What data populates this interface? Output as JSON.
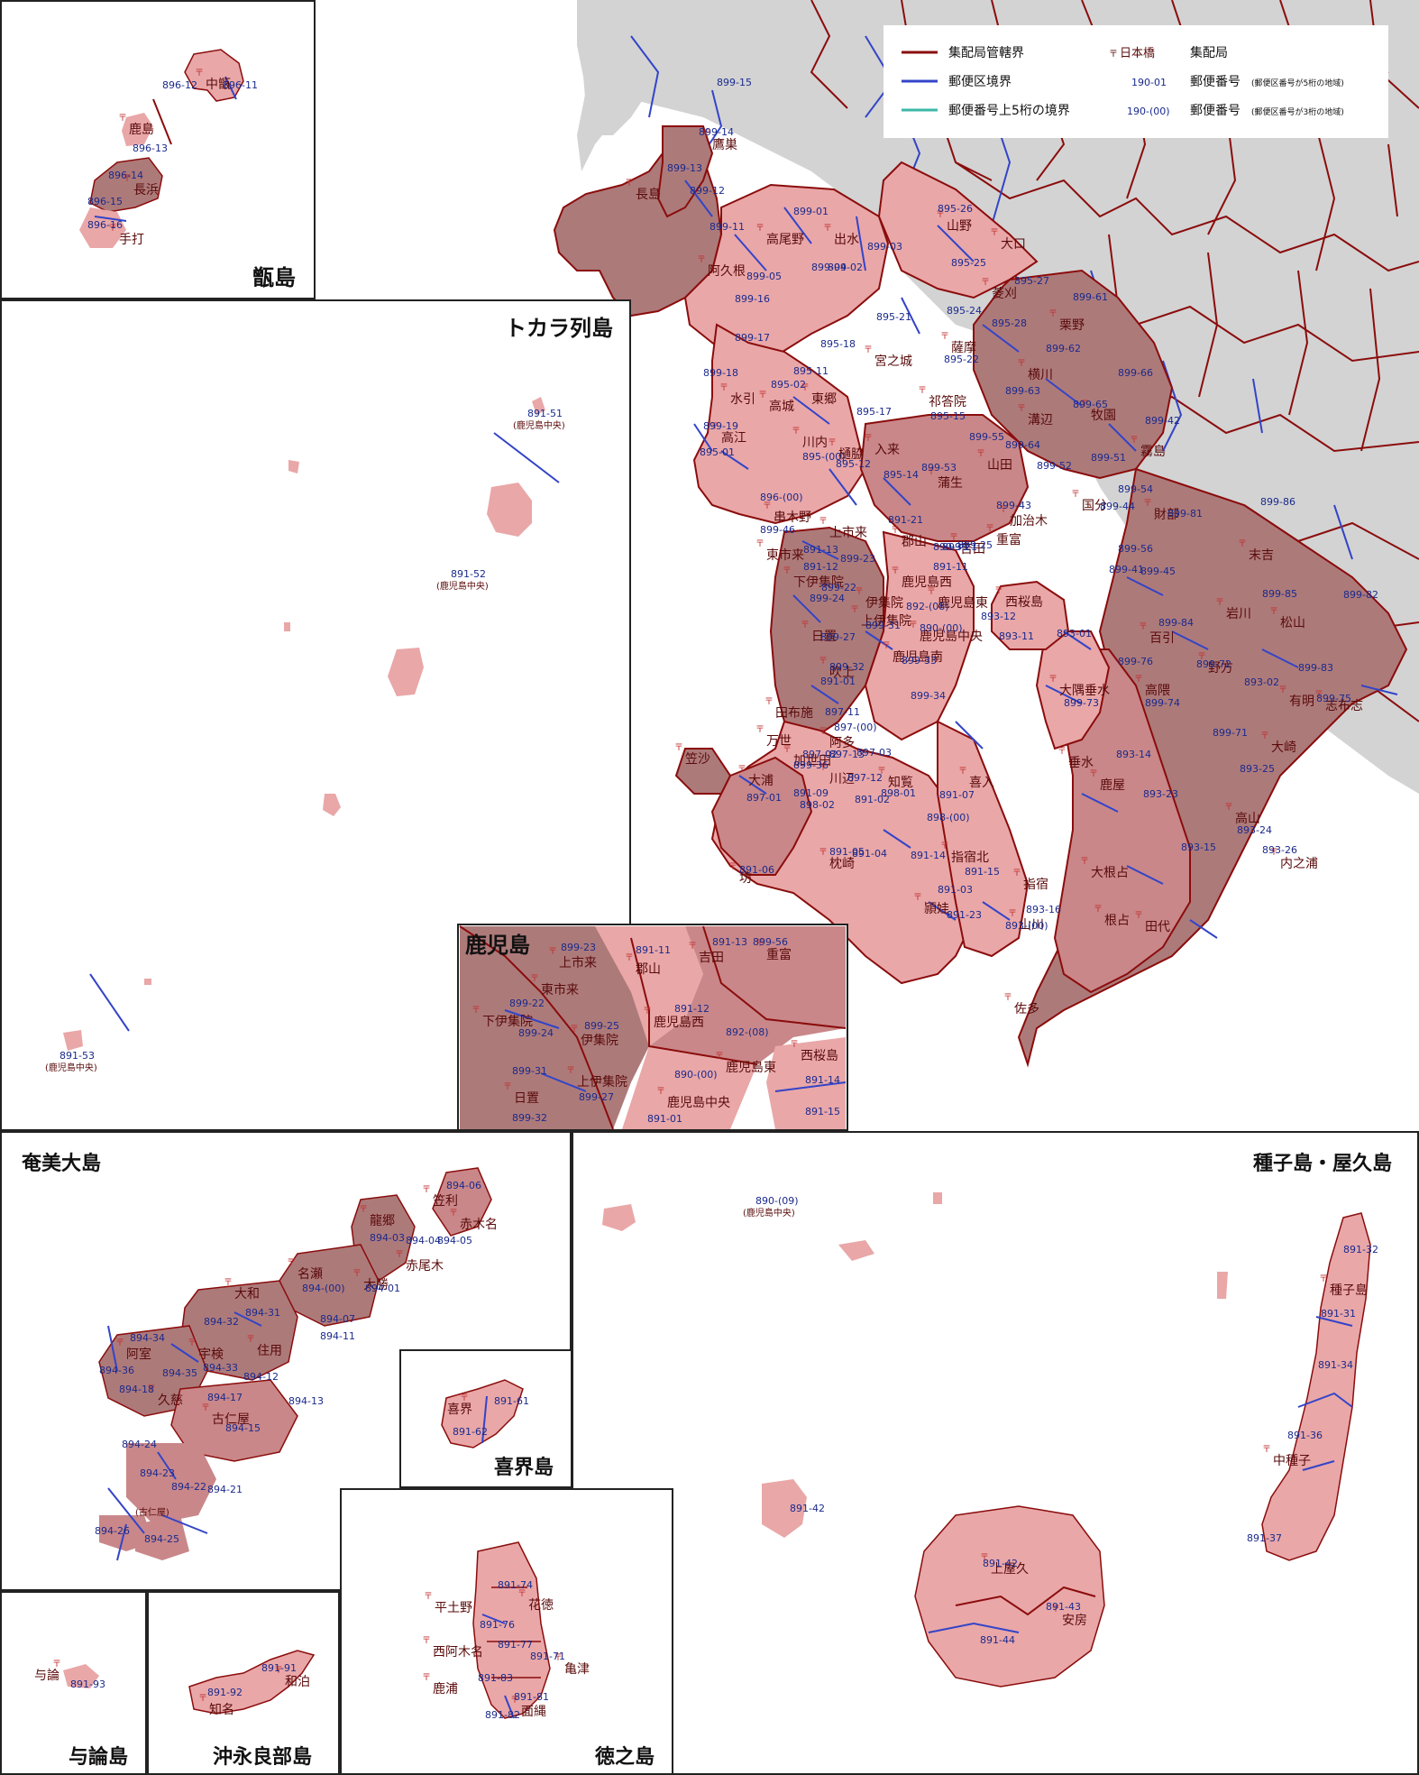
{
  "colors": {
    "light": "#e9a7a8",
    "medium": "#c98789",
    "dark": "#ad7a7a",
    "gray": "#d3d3d3",
    "boundary_office": "#8b0c0c",
    "boundary_delivery": "#3344c8",
    "boundary_prefix": "#3bb8a8"
  },
  "legend": {
    "office_boundary": "集配局管轄界",
    "delivery_boundary": "郵便区境界",
    "prefix_boundary": "郵便番号上5桁の境界",
    "office_example": "日本橋",
    "office_label": "集配局",
    "code5_example": "190-01",
    "code5_label": "郵便番号",
    "code5_note": "(郵便区番号が5桁の地域)",
    "code3_example": "190-(00)",
    "code3_label": "郵便番号",
    "code3_note": "(郵便区番号が3桁の地域)"
  },
  "panels": {
    "koshiki": {
      "title": "甑島"
    },
    "tokara": {
      "title": "トカラ列島"
    },
    "kagoshima": {
      "title": "鹿児島"
    },
    "amami": {
      "title": "奄美大島"
    },
    "tanegashima": {
      "title": "種子島・屋久島"
    },
    "kikai": {
      "title": "喜界島"
    },
    "yoron": {
      "title": "与論島"
    },
    "okinoerabu": {
      "title": "沖永良部島"
    },
    "tokunoshima": {
      "title": "徳之島"
    }
  },
  "offices_main": [
    "鷹巣",
    "長島",
    "高尾野",
    "出水",
    "大口",
    "山野",
    "阿久根",
    "菱刈",
    "栗野",
    "横川",
    "牧園",
    "溝辺",
    "霧島",
    "山田",
    "蒲生",
    "宮之城",
    "薩摩",
    "祁答院",
    "入来",
    "樋脇",
    "川内",
    "東郷",
    "高城",
    "水引",
    "高江",
    "串木野",
    "上市来",
    "東市来",
    "郡山",
    "吉田",
    "加治木",
    "重富",
    "国分",
    "財部",
    "末吉",
    "岩川",
    "松山",
    "百引",
    "野方",
    "有明",
    "志布志",
    "大崎",
    "高隈",
    "大隅垂水",
    "西桜島",
    "鹿児島東",
    "鹿児島西",
    "鹿児島中央",
    "鹿児島南",
    "伊集院",
    "上伊集院",
    "下伊集院",
    "日置",
    "吹上",
    "田布施",
    "阿多",
    "万世",
    "加世田",
    "笠沙",
    "大浦",
    "川辺",
    "知覧",
    "喜入",
    "坊",
    "枕崎",
    "頴娃",
    "指宿北",
    "指宿",
    "山川",
    "鹿屋",
    "高山",
    "大根占",
    "内之浦",
    "根占",
    "田代",
    "佐多",
    "垂水"
  ],
  "codes_main": [
    "899-15",
    "899-14",
    "899-13",
    "899-12",
    "899-11",
    "899-01",
    "899-04",
    "899-02",
    "899-03",
    "899-05",
    "899-16",
    "899-17",
    "895-26",
    "895-25",
    "895-27",
    "895-24",
    "895-28",
    "895-21",
    "895-18",
    "895-22",
    "895-11",
    "895-02",
    "895-17",
    "895-15",
    "899-18",
    "899-19",
    "895-01",
    "895-(00)",
    "895-12",
    "895-14",
    "896-(00)",
    "899-61",
    "899-62",
    "899-63",
    "899-66",
    "899-65",
    "899-64",
    "899-42",
    "899-55",
    "899-53",
    "899-52",
    "899-51",
    "899-43",
    "899-54",
    "899-56",
    "899-44",
    "899-41",
    "899-45",
    "899-81",
    "899-86",
    "899-85",
    "899-84",
    "899-82",
    "899-76",
    "899-72",
    "893-02",
    "899-83",
    "899-75",
    "899-74",
    "899-71",
    "893-01",
    "899-73",
    "899-46",
    "891-21",
    "899-21",
    "891-11",
    "891-13",
    "891-12",
    "899-23",
    "899-22",
    "899-25",
    "899-24",
    "892-(08)",
    "899-31",
    "890-(00)",
    "899-27",
    "899-32",
    "891-01",
    "899-33",
    "899-34",
    "899-35",
    "897-11",
    "897-(00)",
    "897-02",
    "897-13",
    "897-12",
    "899-36",
    "897-03",
    "891-02",
    "898-02",
    "897-01",
    "898-01",
    "898-(00)",
    "891-09",
    "891-07",
    "891-03",
    "891-06",
    "891-05",
    "891-04",
    "891-14",
    "891-15",
    "891-23",
    "893-(00)",
    "893-16",
    "893-12",
    "893-11",
    "893-14",
    "893-23",
    "893-25",
    "893-24",
    "893-15",
    "893-26"
  ],
  "koshiki": {
    "offices": [
      "中甑",
      "鹿島",
      "長浜",
      "手打"
    ],
    "codes": [
      "896-12",
      "896-11",
      "896-13",
      "896-14",
      "896-15",
      "896-16"
    ]
  },
  "tokara": {
    "codes": [
      "891-51",
      "891-52",
      "891-53"
    ],
    "sub": [
      "(鹿児島中央)",
      "(鹿児島中央)",
      "(鹿児島中央)"
    ]
  },
  "inset_kagoshima": {
    "offices": [
      "上市来",
      "郡山",
      "吉田",
      "重富",
      "東市来",
      "下伊集院",
      "伊集院",
      "鹿児島西",
      "鹿児島東",
      "西桜島",
      "上伊集院",
      "日置",
      "鹿児島中央"
    ],
    "codes": [
      "899-23",
      "891-11",
      "891-13",
      "899-56",
      "899-22",
      "899-24",
      "899-25",
      "891-12",
      "892-(08)",
      "899-31",
      "890-(00)",
      "891-14",
      "899-27",
      "891-15",
      "899-32",
      "891-01"
    ]
  },
  "amami": {
    "offices": [
      "笠利",
      "龍郷",
      "赤木名",
      "名瀬",
      "赤尾木",
      "大勝",
      "大和",
      "宇検",
      "阿室",
      "住用",
      "久慈",
      "古仁屋"
    ],
    "codes": [
      "894-06",
      "894-03",
      "894-04",
      "894-05",
      "894-(00)",
      "894-01",
      "894-31",
      "894-32",
      "894-11",
      "894-07",
      "894-34",
      "894-33",
      "894-36",
      "894-35",
      "894-12",
      "894-18",
      "894-17",
      "894-13",
      "894-15",
      "894-24",
      "894-23",
      "894-22",
      "894-21",
      "894-26",
      "894-25"
    ],
    "sub": "(古仁屋)"
  },
  "kikai": {
    "offices": [
      "喜界"
    ],
    "codes": [
      "891-61",
      "891-62"
    ]
  },
  "yoron": {
    "offices": [
      "与論"
    ],
    "codes": [
      "891-93"
    ]
  },
  "okinoerabu": {
    "offices": [
      "和泊",
      "知名"
    ],
    "codes": [
      "891-91",
      "891-92"
    ]
  },
  "tokunoshima": {
    "offices": [
      "平土野",
      "花徳",
      "西阿木名",
      "亀津",
      "鹿浦",
      "面縄"
    ],
    "codes": [
      "891-74",
      "891-76",
      "891-77",
      "891-71",
      "891-83",
      "891-81",
      "891-82"
    ]
  },
  "tanegashima": {
    "offices": [
      "種子島",
      "中種子",
      "上屋久",
      "安房"
    ],
    "codes": [
      "890-(09)",
      "891-32",
      "891-31",
      "891-34",
      "891-36",
      "891-37",
      "891-42",
      "891-42",
      "891-43",
      "891-44"
    ],
    "sub": "(鹿児島中央)"
  }
}
